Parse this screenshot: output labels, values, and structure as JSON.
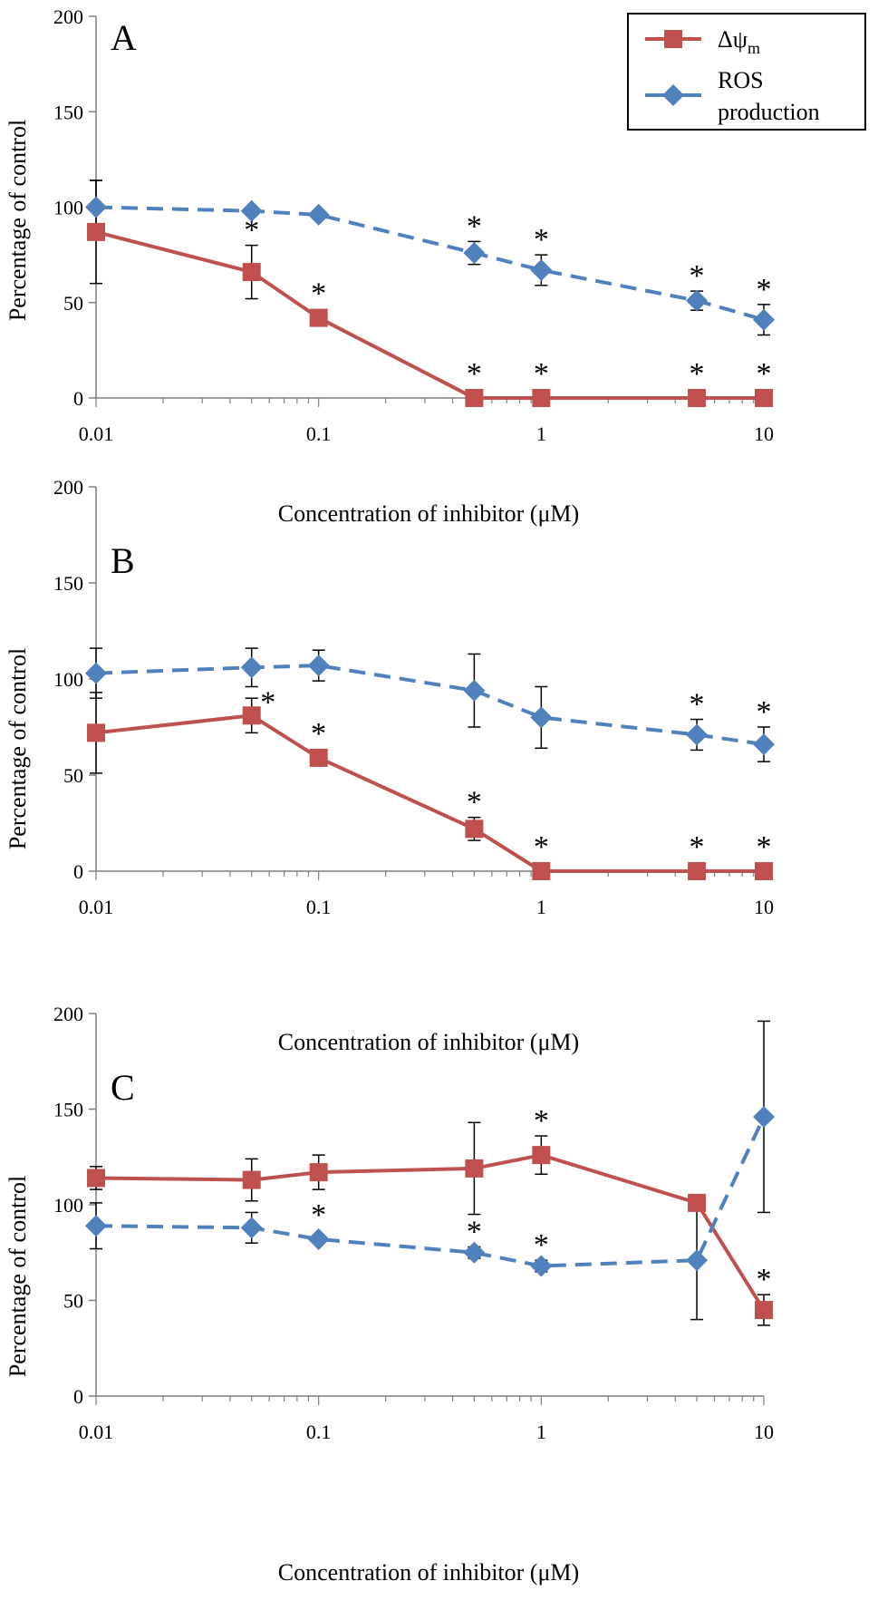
{
  "legend": {
    "items": [
      {
        "label": "Δψ",
        "subscript": "m",
        "color": "#C0504D",
        "marker": "square",
        "dash": "solid"
      },
      {
        "label": "ROS",
        "label2": "production",
        "color": "#4F81BD",
        "marker": "diamond",
        "dash": "dashed"
      }
    ]
  },
  "chart_data": [
    {
      "type": "line",
      "panel_label": "A",
      "xlabel": "Concentration of inhibitor (μM)",
      "ylabel": "Percentage of control",
      "xscale": "log",
      "xlim": [
        0.01,
        10
      ],
      "ylim": [
        0,
        200
      ],
      "xticks": [
        "0.01",
        "0.1",
        "1",
        "10"
      ],
      "yticks": [
        "0",
        "50",
        "100",
        "150",
        "200"
      ],
      "legend_position": "top-right",
      "x": [
        0.01,
        0.05,
        0.1,
        0.5,
        1,
        5,
        10
      ],
      "series": [
        {
          "name": "Δψm",
          "color": "#C0504D",
          "marker": "square",
          "dash": "solid",
          "values": [
            87,
            66,
            42,
            0,
            0,
            0,
            0
          ],
          "error": [
            27,
            14,
            0,
            0,
            0,
            0,
            0
          ],
          "significant": [
            false,
            true,
            true,
            true,
            true,
            true,
            true
          ]
        },
        {
          "name": "ROS production",
          "color": "#4F81BD",
          "marker": "diamond",
          "dash": "dashed",
          "values": [
            100,
            98,
            96,
            76,
            67,
            51,
            41
          ],
          "error": [
            14,
            0,
            0,
            6,
            8,
            5,
            8
          ],
          "significant": [
            false,
            false,
            false,
            true,
            true,
            true,
            true
          ]
        }
      ]
    },
    {
      "type": "line",
      "panel_label": "B",
      "xlabel": "Concentration of inhibitor (μM)",
      "ylabel": "Percentage of control",
      "xscale": "log",
      "xlim": [
        0.01,
        10
      ],
      "ylim": [
        0,
        200
      ],
      "xticks": [
        "0.01",
        "0.1",
        "1",
        "10"
      ],
      "yticks": [
        "0",
        "50",
        "100",
        "150",
        "200"
      ],
      "x": [
        0.01,
        0.05,
        0.1,
        0.5,
        1,
        5,
        10
      ],
      "series": [
        {
          "name": "Δψm",
          "color": "#C0504D",
          "marker": "square",
          "dash": "solid",
          "values": [
            72,
            81,
            59,
            22,
            0,
            0,
            0
          ],
          "error": [
            21,
            9,
            0,
            6,
            0,
            0,
            0
          ],
          "significant": [
            false,
            true,
            true,
            true,
            true,
            true,
            true
          ]
        },
        {
          "name": "ROS production",
          "color": "#4F81BD",
          "marker": "diamond",
          "dash": "dashed",
          "values": [
            103,
            106,
            107,
            94,
            80,
            71,
            66
          ],
          "error": [
            13,
            10,
            8,
            19,
            16,
            8,
            9
          ],
          "significant": [
            false,
            false,
            false,
            false,
            false,
            true,
            true
          ]
        }
      ]
    },
    {
      "type": "line",
      "panel_label": "C",
      "xlabel": "Concentration of inhibitor (μM)",
      "ylabel": "Percentage of control",
      "xscale": "log",
      "xlim": [
        0.01,
        10
      ],
      "ylim": [
        0,
        200
      ],
      "xticks": [
        "0.01",
        "0.1",
        "1",
        "10"
      ],
      "yticks": [
        "0",
        "50",
        "100",
        "150",
        "200"
      ],
      "x": [
        0.01,
        0.05,
        0.1,
        0.5,
        1,
        5,
        10
      ],
      "series": [
        {
          "name": "Δψm",
          "color": "#C0504D",
          "marker": "square",
          "dash": "solid",
          "values": [
            114,
            113,
            117,
            119,
            126,
            101,
            45
          ],
          "error": [
            6,
            11,
            9,
            24,
            10,
            0,
            8
          ],
          "significant": [
            false,
            false,
            false,
            false,
            true,
            false,
            true
          ]
        },
        {
          "name": "ROS production",
          "color": "#4F81BD",
          "marker": "diamond",
          "dash": "dashed",
          "values": [
            89,
            88,
            82,
            75,
            68,
            71,
            146
          ],
          "error": [
            12,
            8,
            0,
            3,
            3,
            31,
            50
          ],
          "significant": [
            false,
            false,
            true,
            true,
            true,
            false,
            false
          ]
        }
      ]
    }
  ]
}
